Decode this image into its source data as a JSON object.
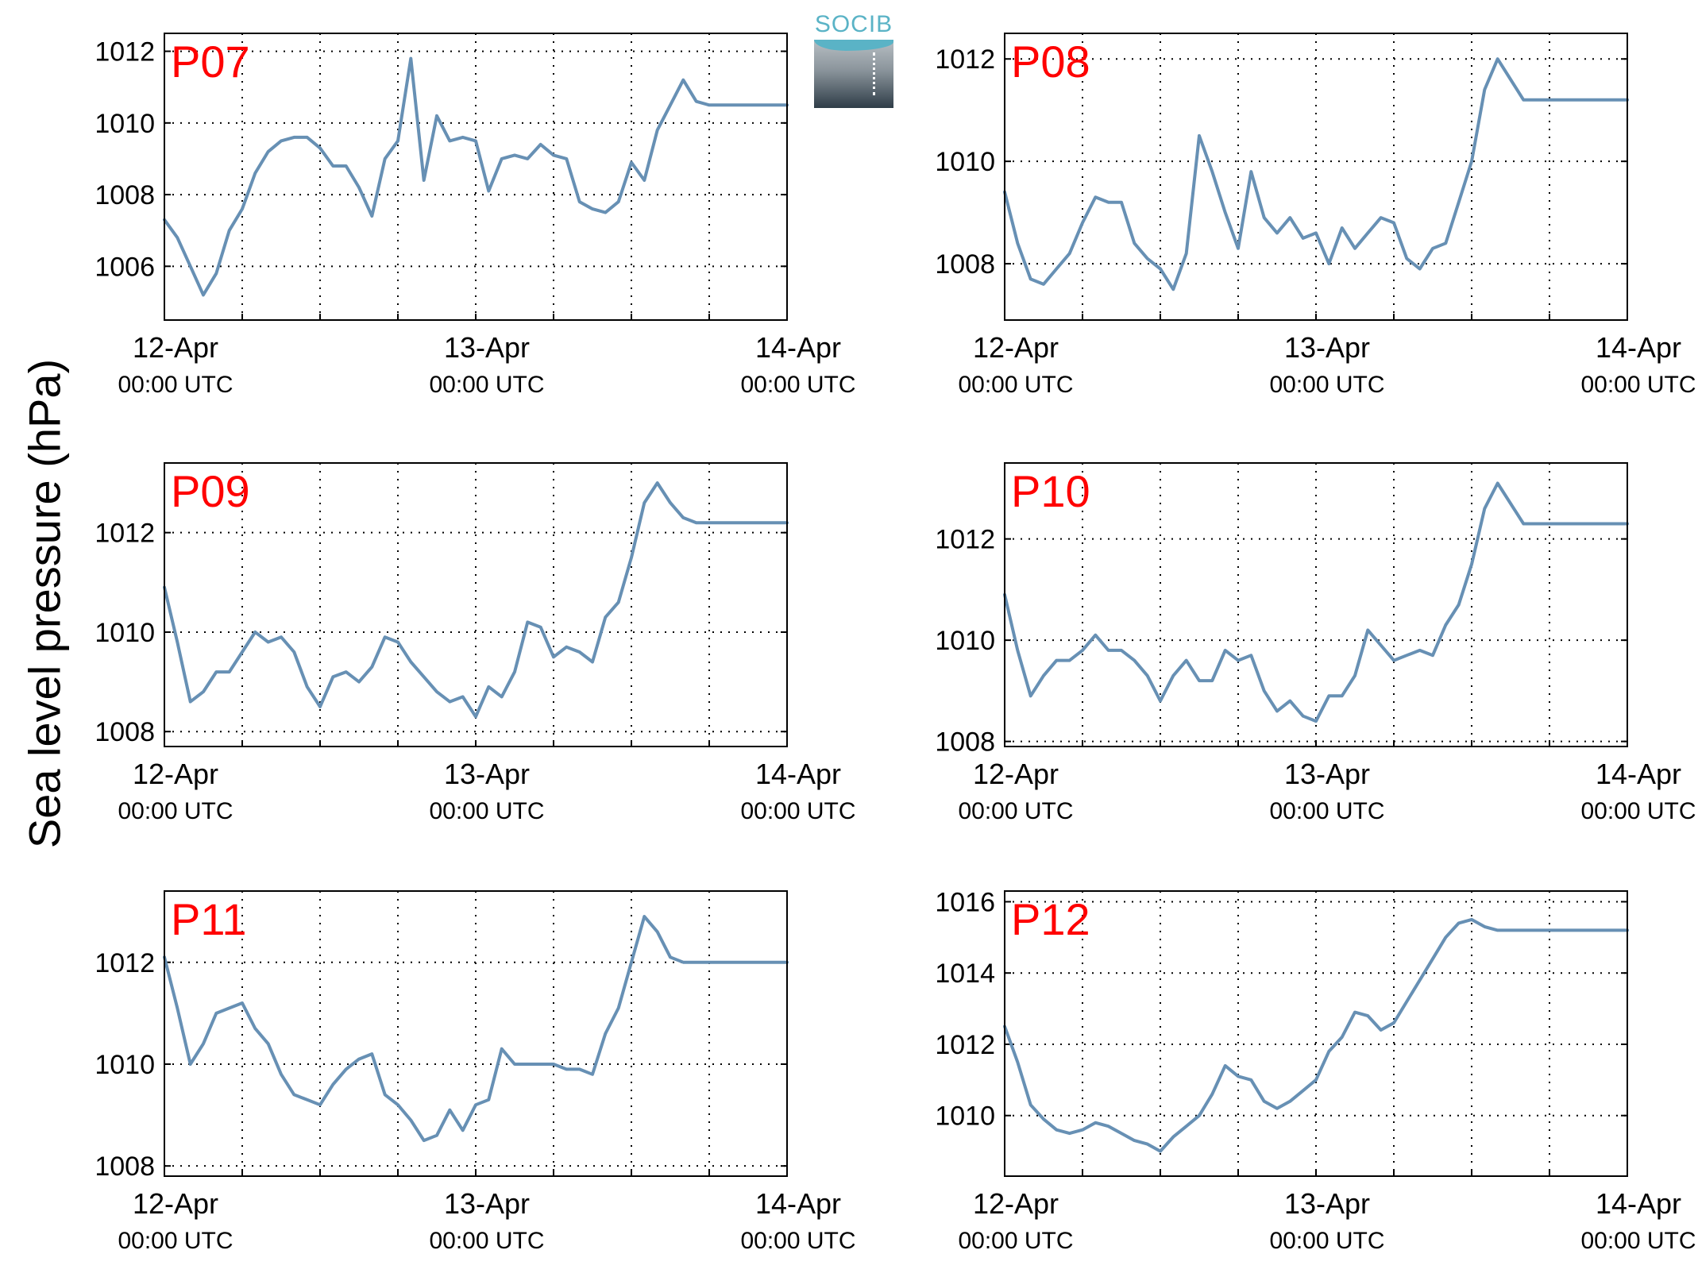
{
  "ylabel": "Sea level pressure (hPa)",
  "logo_text": "SOCIB",
  "colors": {
    "line": "#6790b4",
    "panel_label": "#ff0000",
    "axis": "#000000",
    "grid": "#000000"
  },
  "chart_data": [
    {
      "type": "line",
      "title": "P07",
      "x_unit": "hours since 12-Apr 00:00 UTC",
      "xlim": [
        0,
        48
      ],
      "ylim": [
        1004.5,
        1012.5
      ],
      "yticks": [
        1006,
        1008,
        1010,
        1012
      ],
      "xticks": [
        0,
        24,
        48
      ],
      "xtick_labels": [
        [
          "12-Apr",
          "00:00 UTC"
        ],
        [
          "13-Apr",
          "00:00 UTC"
        ],
        [
          "14-Apr",
          "00:00 UTC"
        ]
      ],
      "grid": true,
      "x": [
        0,
        1,
        2,
        3,
        4,
        5,
        6,
        7,
        8,
        9,
        10,
        11,
        12,
        13,
        14,
        15,
        16,
        17,
        18,
        19,
        20,
        21,
        22,
        23,
        24,
        25,
        26,
        27,
        28,
        29,
        30,
        31,
        32,
        33,
        34,
        35,
        36,
        37,
        38,
        39,
        40,
        41,
        42,
        43,
        44,
        45,
        46,
        47,
        48
      ],
      "y": [
        1007.3,
        1006.8,
        1006.0,
        1005.2,
        1005.8,
        1007.0,
        1007.6,
        1008.6,
        1009.2,
        1009.5,
        1009.6,
        1009.6,
        1009.3,
        1008.8,
        1008.8,
        1008.2,
        1007.4,
        1009.0,
        1009.5,
        1011.8,
        1008.4,
        1010.2,
        1009.5,
        1009.6,
        1009.5,
        1008.1,
        1009.0,
        1009.1,
        1009.0,
        1009.4,
        1009.1,
        1009.0,
        1007.8,
        1007.6,
        1007.5,
        1007.8,
        1008.9,
        1008.4,
        1009.8,
        1010.5,
        1011.2,
        1010.6,
        1010.5,
        1010.5,
        1010.5,
        1010.5,
        1010.5,
        1010.5,
        1010.5
      ]
    },
    {
      "type": "line",
      "title": "P08",
      "x_unit": "hours since 12-Apr 00:00 UTC",
      "xlim": [
        0,
        48
      ],
      "ylim": [
        1006.9,
        1012.5
      ],
      "yticks": [
        1008,
        1010,
        1012
      ],
      "xticks": [
        0,
        24,
        48
      ],
      "xtick_labels": [
        [
          "12-Apr",
          "00:00 UTC"
        ],
        [
          "13-Apr",
          "00:00 UTC"
        ],
        [
          "14-Apr",
          "00:00 UTC"
        ]
      ],
      "grid": true,
      "x": [
        0,
        1,
        2,
        3,
        4,
        5,
        6,
        7,
        8,
        9,
        10,
        11,
        12,
        13,
        14,
        15,
        16,
        17,
        18,
        19,
        20,
        21,
        22,
        23,
        24,
        25,
        26,
        27,
        28,
        29,
        30,
        31,
        32,
        33,
        34,
        35,
        36,
        37,
        38,
        39,
        40,
        41,
        42,
        43,
        44,
        45,
        46,
        47,
        48
      ],
      "y": [
        1009.4,
        1008.4,
        1007.7,
        1007.6,
        1007.9,
        1008.2,
        1008.8,
        1009.3,
        1009.2,
        1009.2,
        1008.4,
        1008.1,
        1007.9,
        1007.5,
        1008.2,
        1010.5,
        1009.8,
        1009.0,
        1008.3,
        1009.8,
        1008.9,
        1008.6,
        1008.9,
        1008.5,
        1008.6,
        1008.0,
        1008.7,
        1008.3,
        1008.6,
        1008.9,
        1008.8,
        1008.1,
        1007.9,
        1008.3,
        1008.4,
        1009.2,
        1010.0,
        1011.4,
        1012.0,
        1011.6,
        1011.2,
        1011.2,
        1011.2,
        1011.2,
        1011.2,
        1011.2,
        1011.2,
        1011.2,
        1011.2
      ]
    },
    {
      "type": "line",
      "title": "P09",
      "x_unit": "hours since 12-Apr 00:00 UTC",
      "xlim": [
        0,
        48
      ],
      "ylim": [
        1007.7,
        1013.4
      ],
      "yticks": [
        1008,
        1010,
        1012
      ],
      "xticks": [
        0,
        24,
        48
      ],
      "xtick_labels": [
        [
          "12-Apr",
          "00:00 UTC"
        ],
        [
          "13-Apr",
          "00:00 UTC"
        ],
        [
          "14-Apr",
          "00:00 UTC"
        ]
      ],
      "grid": true,
      "x": [
        0,
        1,
        2,
        3,
        4,
        5,
        6,
        7,
        8,
        9,
        10,
        11,
        12,
        13,
        14,
        15,
        16,
        17,
        18,
        19,
        20,
        21,
        22,
        23,
        24,
        25,
        26,
        27,
        28,
        29,
        30,
        31,
        32,
        33,
        34,
        35,
        36,
        37,
        38,
        39,
        40,
        41,
        42,
        43,
        44,
        45,
        46,
        47,
        48
      ],
      "y": [
        1010.9,
        1009.8,
        1008.6,
        1008.8,
        1009.2,
        1009.2,
        1009.6,
        1010.0,
        1009.8,
        1009.9,
        1009.6,
        1008.9,
        1008.5,
        1009.1,
        1009.2,
        1009.0,
        1009.3,
        1009.9,
        1009.8,
        1009.4,
        1009.1,
        1008.8,
        1008.6,
        1008.7,
        1008.3,
        1008.9,
        1008.7,
        1009.2,
        1010.2,
        1010.1,
        1009.5,
        1009.7,
        1009.6,
        1009.4,
        1010.3,
        1010.6,
        1011.5,
        1012.6,
        1013.0,
        1012.6,
        1012.3,
        1012.2,
        1012.2,
        1012.2,
        1012.2,
        1012.2,
        1012.2,
        1012.2,
        1012.2
      ]
    },
    {
      "type": "line",
      "title": "P10",
      "x_unit": "hours since 12-Apr 00:00 UTC",
      "xlim": [
        0,
        48
      ],
      "ylim": [
        1007.9,
        1013.5
      ],
      "yticks": [
        1008,
        1010,
        1012
      ],
      "xticks": [
        0,
        24,
        48
      ],
      "xtick_labels": [
        [
          "12-Apr",
          "00:00 UTC"
        ],
        [
          "13-Apr",
          "00:00 UTC"
        ],
        [
          "14-Apr",
          "00:00 UTC"
        ]
      ],
      "grid": true,
      "x": [
        0,
        1,
        2,
        3,
        4,
        5,
        6,
        7,
        8,
        9,
        10,
        11,
        12,
        13,
        14,
        15,
        16,
        17,
        18,
        19,
        20,
        21,
        22,
        23,
        24,
        25,
        26,
        27,
        28,
        29,
        30,
        31,
        32,
        33,
        34,
        35,
        36,
        37,
        38,
        39,
        40,
        41,
        42,
        43,
        44,
        45,
        46,
        47,
        48
      ],
      "y": [
        1010.9,
        1009.8,
        1008.9,
        1009.3,
        1009.6,
        1009.6,
        1009.8,
        1010.1,
        1009.8,
        1009.8,
        1009.6,
        1009.3,
        1008.8,
        1009.3,
        1009.6,
        1009.2,
        1009.2,
        1009.8,
        1009.6,
        1009.7,
        1009.0,
        1008.6,
        1008.8,
        1008.5,
        1008.4,
        1008.9,
        1008.9,
        1009.3,
        1010.2,
        1009.9,
        1009.6,
        1009.7,
        1009.8,
        1009.7,
        1010.3,
        1010.7,
        1011.5,
        1012.6,
        1013.1,
        1012.7,
        1012.3,
        1012.3,
        1012.3,
        1012.3,
        1012.3,
        1012.3,
        1012.3,
        1012.3,
        1012.3
      ]
    },
    {
      "type": "line",
      "title": "P11",
      "x_unit": "hours since 12-Apr 00:00 UTC",
      "xlim": [
        0,
        48
      ],
      "ylim": [
        1007.8,
        1013.4
      ],
      "yticks": [
        1008,
        1010,
        1012
      ],
      "xticks": [
        0,
        24,
        48
      ],
      "xtick_labels": [
        [
          "12-Apr",
          "00:00 UTC"
        ],
        [
          "13-Apr",
          "00:00 UTC"
        ],
        [
          "14-Apr",
          "00:00 UTC"
        ]
      ],
      "grid": true,
      "x": [
        0,
        1,
        2,
        3,
        4,
        5,
        6,
        7,
        8,
        9,
        10,
        11,
        12,
        13,
        14,
        15,
        16,
        17,
        18,
        19,
        20,
        21,
        22,
        23,
        24,
        25,
        26,
        27,
        28,
        29,
        30,
        31,
        32,
        33,
        34,
        35,
        36,
        37,
        38,
        39,
        40,
        41,
        42,
        43,
        44,
        45,
        46,
        47,
        48
      ],
      "y": [
        1012.1,
        1011.1,
        1010.0,
        1010.4,
        1011.0,
        1011.1,
        1011.2,
        1010.7,
        1010.4,
        1009.8,
        1009.4,
        1009.3,
        1009.2,
        1009.6,
        1009.9,
        1010.1,
        1010.2,
        1009.4,
        1009.2,
        1008.9,
        1008.5,
        1008.6,
        1009.1,
        1008.7,
        1009.2,
        1009.3,
        1010.3,
        1010.0,
        1010.0,
        1010.0,
        1010.0,
        1009.9,
        1009.9,
        1009.8,
        1010.6,
        1011.1,
        1012.0,
        1012.9,
        1012.6,
        1012.1,
        1012.0,
        1012.0,
        1012.0,
        1012.0,
        1012.0,
        1012.0,
        1012.0,
        1012.0,
        1012.0
      ]
    },
    {
      "type": "line",
      "title": "P12",
      "x_unit": "hours since 12-Apr 00:00 UTC",
      "xlim": [
        0,
        48
      ],
      "ylim": [
        1008.3,
        1016.3
      ],
      "yticks": [
        1010,
        1012,
        1014,
        1016
      ],
      "xticks": [
        0,
        24,
        48
      ],
      "xtick_labels": [
        [
          "12-Apr",
          "00:00 UTC"
        ],
        [
          "13-Apr",
          "00:00 UTC"
        ],
        [
          "14-Apr",
          "00:00 UTC"
        ]
      ],
      "grid": true,
      "x": [
        0,
        1,
        2,
        3,
        4,
        5,
        6,
        7,
        8,
        9,
        10,
        11,
        12,
        13,
        14,
        15,
        16,
        17,
        18,
        19,
        20,
        21,
        22,
        23,
        24,
        25,
        26,
        27,
        28,
        29,
        30,
        31,
        32,
        33,
        34,
        35,
        36,
        37,
        38,
        39,
        40,
        41,
        42,
        43,
        44,
        45,
        46,
        47,
        48
      ],
      "y": [
        1012.5,
        1011.5,
        1010.3,
        1009.9,
        1009.6,
        1009.5,
        1009.6,
        1009.8,
        1009.7,
        1009.5,
        1009.3,
        1009.2,
        1009.0,
        1009.4,
        1009.7,
        1010.0,
        1010.6,
        1011.4,
        1011.1,
        1011.0,
        1010.4,
        1010.2,
        1010.4,
        1010.7,
        1011.0,
        1011.8,
        1012.2,
        1012.9,
        1012.8,
        1012.4,
        1012.6,
        1013.2,
        1013.8,
        1014.4,
        1015.0,
        1015.4,
        1015.5,
        1015.3,
        1015.2,
        1015.2,
        1015.2,
        1015.2,
        1015.2,
        1015.2,
        1015.2,
        1015.2,
        1015.2,
        1015.2,
        1015.2
      ]
    }
  ]
}
